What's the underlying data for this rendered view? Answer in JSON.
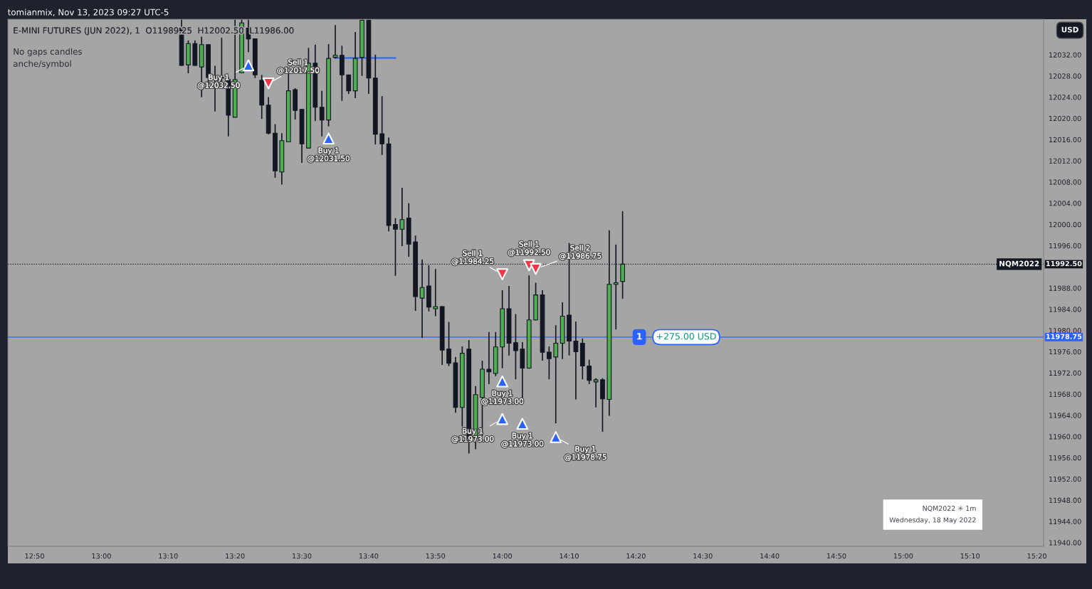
{
  "chart_data": {
    "type": "candlestick",
    "title": "E-MINI FUTURES (JUN 2022), 1  O11989.25  H12002.50  L11986.00",
    "ylabel": "USD",
    "x": [
      "2022-05-18T13:12",
      "2022-05-18T13:13",
      "2022-05-18T13:14",
      "2022-05-18T13:15",
      "2022-05-18T13:16",
      "2022-05-18T13:17",
      "2022-05-18T13:18",
      "2022-05-18T13:19",
      "2022-05-18T13:20",
      "2022-05-18T13:21",
      "2022-05-18T13:22",
      "2022-05-18T13:23",
      "2022-05-18T13:24",
      "2022-05-18T13:25",
      "2022-05-18T13:26",
      "2022-05-18T13:27",
      "2022-05-18T13:28",
      "2022-05-18T13:29",
      "2022-05-18T13:30",
      "2022-05-18T13:31",
      "2022-05-18T13:32",
      "2022-05-18T13:33",
      "2022-05-18T13:34",
      "2022-05-18T13:35",
      "2022-05-18T13:36",
      "2022-05-18T13:37",
      "2022-05-18T13:38",
      "2022-05-18T13:39",
      "2022-05-18T13:40",
      "2022-05-18T13:41",
      "2022-05-18T13:42",
      "2022-05-18T13:43",
      "2022-05-18T13:44",
      "2022-05-18T13:45",
      "2022-05-18T13:46",
      "2022-05-18T13:47",
      "2022-05-18T13:48",
      "2022-05-18T13:49",
      "2022-05-18T13:50",
      "2022-05-18T13:51",
      "2022-05-18T13:52",
      "2022-05-18T13:53",
      "2022-05-18T13:54",
      "2022-05-18T13:55",
      "2022-05-18T13:56",
      "2022-05-18T13:57",
      "2022-05-18T13:58",
      "2022-05-18T13:59",
      "2022-05-18T14:00",
      "2022-05-18T14:01",
      "2022-05-18T14:02",
      "2022-05-18T14:03",
      "2022-05-18T14:04",
      "2022-05-18T14:05",
      "2022-05-18T14:06",
      "2022-05-18T14:07",
      "2022-05-18T14:08",
      "2022-05-18T14:09",
      "2022-05-18T14:10",
      "2022-05-18T14:11",
      "2022-05-18T14:12",
      "2022-05-18T14:13",
      "2022-05-18T14:14",
      "2022-05-18T14:15",
      "2022-05-18T14:16",
      "2022-05-18T14:17",
      "2022-05-18T14:18"
    ],
    "ohlc": [
      [
        12037.0,
        12038.6,
        12029.9,
        12030.0
      ],
      [
        12030.1,
        12034.7,
        12028.5,
        12034.1
      ],
      [
        12034.1,
        12034.7,
        12029.9,
        12030.0
      ],
      [
        12029.7,
        12035.4,
        12024.0,
        12033.9
      ],
      [
        12033.9,
        12034.0,
        12026.4,
        12027.7
      ],
      [
        12027.8,
        12029.9,
        12021.3,
        12027.8
      ],
      [
        12027.6,
        12035.2,
        12026.0,
        12027.6
      ],
      [
        12027.3,
        12027.8,
        12016.6,
        12020.6
      ],
      [
        12020.2,
        12038.6,
        12020.2,
        12027.3
      ],
      [
        12028.6,
        12038.6,
        12028.5,
        12038.0
      ],
      [
        12037.0,
        12038.6,
        12032.5,
        12035.0
      ],
      [
        12035.0,
        12035.0,
        12027.6,
        12028.2
      ],
      [
        12027.2,
        12028.2,
        12019.9,
        12022.5
      ],
      [
        12022.5,
        12024.0,
        12017.0,
        12017.2
      ],
      [
        12017.2,
        12018.9,
        12008.8,
        12010.1
      ],
      [
        12009.9,
        12017.2,
        12007.5,
        12015.8
      ],
      [
        12015.6,
        12028.5,
        12015.6,
        12025.2
      ],
      [
        12025.4,
        12025.7,
        12019.8,
        12021.5
      ],
      [
        12021.7,
        12021.7,
        12011.6,
        12015.2
      ],
      [
        12014.4,
        12033.3,
        12014.4,
        12030.4
      ],
      [
        12030.4,
        12033.9,
        12019.5,
        12022.1
      ],
      [
        12022.1,
        12025.2,
        12016.6,
        12019.7
      ],
      [
        12019.7,
        12034.0,
        12018.5,
        12031.3
      ],
      [
        12031.5,
        12037.6,
        12031.3,
        12031.9
      ],
      [
        12031.9,
        12033.7,
        12023.3,
        12028.2
      ],
      [
        12028.2,
        12028.2,
        12024.6,
        12025.2
      ],
      [
        12025.2,
        12036.3,
        12023.8,
        12031.3
      ],
      [
        12031.5,
        12038.6,
        12028.0,
        12038.5
      ],
      [
        12038.5,
        12038.6,
        12024.6,
        12027.6
      ],
      [
        12027.6,
        12032.0,
        12015.1,
        12017.0
      ],
      [
        12017.1,
        12024.2,
        12013.1,
        12015.2
      ],
      [
        12015.2,
        12016.4,
        11998.7,
        11999.8
      ],
      [
        12000.0,
        12001.2,
        11990.3,
        11999.1
      ],
      [
        11999.1,
        12006.9,
        11995.9,
        12000.9
      ],
      [
        12001.2,
        12004.0,
        11993.9,
        11996.3
      ],
      [
        11996.7,
        11997.9,
        11983.7,
        11986.4
      ],
      [
        11986.1,
        11993.4,
        11978.6,
        11988.1
      ],
      [
        11988.4,
        11992.3,
        11983.6,
        11984.4
      ],
      [
        11984.1,
        11991.6,
        11982.7,
        11984.5
      ],
      [
        11984.5,
        11984.6,
        11973.5,
        11976.3
      ],
      [
        11976.5,
        11981.6,
        11973.3,
        11973.8
      ],
      [
        11973.9,
        11975.0,
        11964.5,
        11965.5
      ],
      [
        11965.5,
        11977.0,
        11961.9,
        11975.7
      ],
      [
        11976.5,
        11978.2,
        11956.8,
        11959.6
      ],
      [
        11959.7,
        11969.5,
        11957.6,
        11967.9
      ],
      [
        11967.4,
        11974.3,
        11960.1,
        11972.7
      ],
      [
        11972.7,
        11979.7,
        11969.9,
        11972.2
      ],
      [
        11971.9,
        11979.7,
        11971.4,
        11976.9
      ],
      [
        11976.9,
        11987.6,
        11972.9,
        11984.1
      ],
      [
        11984.1,
        11988.4,
        11975.3,
        11977.6
      ],
      [
        11977.7,
        11983.1,
        11970.8,
        11976.2
      ],
      [
        11976.5,
        11977.8,
        11966.2,
        11972.9
      ],
      [
        11972.9,
        11990.4,
        11972.8,
        11982.0
      ],
      [
        11982.0,
        11989.0,
        11981.9,
        11986.7
      ],
      [
        11986.7,
        11987.6,
        11974.3,
        11975.9
      ],
      [
        11975.9,
        11977.0,
        11970.8,
        11974.7
      ],
      [
        11975.0,
        11981.0,
        11962.5,
        11977.6
      ],
      [
        11977.6,
        11985.3,
        11974.6,
        11982.7
      ],
      [
        11982.9,
        11996.5,
        11975.3,
        11978.0
      ],
      [
        11978.0,
        11981.7,
        11967.0,
        11976.0
      ],
      [
        11977.6,
        11978.5,
        11970.8,
        11973.3
      ],
      [
        11973.3,
        11974.5,
        11969.9,
        11970.6
      ],
      [
        11970.3,
        11971.0,
        11965.5,
        11970.7
      ],
      [
        11970.7,
        11971.0,
        11960.9,
        11967.1
      ],
      [
        11967.0,
        11998.9,
        11963.9,
        11988.7
      ],
      [
        11988.7,
        11996.2,
        11980.2,
        11989.0
      ],
      [
        11989.25,
        12002.5,
        11986.0,
        11992.5
      ]
    ],
    "series": [
      {
        "type": "scatter",
        "color": "#2962ff",
        "marker": "triangle",
        "x": [
          "2022-05-18T13:22",
          "2022-05-18T13:34",
          "2022-05-18T14:00",
          "2022-05-18T14:00",
          "2022-05-18T14:03",
          "2022-05-18T14:08"
        ],
        "values": [
          12030.0,
          12016.2,
          11970.4,
          11963.3,
          11962.4,
          11959.9
        ]
      },
      {
        "type": "scatter",
        "color": "#f23645",
        "marker": "triangle_down",
        "x": [
          "2022-05-18T13:25",
          "2022-05-18T14:00",
          "2022-05-18T14:04",
          "2022-05-18T14:05"
        ],
        "values": [
          12026.6,
          11990.6,
          11992.3,
          11991.6
        ]
      },
      {
        "type": "line",
        "color": "#2962ff",
        "x": [
          "2022-05-18T13:35",
          "2022-05-18T13:44"
        ],
        "values": [
          12031.4,
          12031.4
        ]
      }
    ],
    "ref_lines": [
      {
        "axis": "y",
        "value": 11992.5,
        "label": "NQM2022",
        "color": "#131722",
        "line_style": "dotted"
      },
      {
        "axis": "y",
        "value": 11978.75,
        "label": "+275.00 USD",
        "color": "#2962ff",
        "line_style": "solid"
      }
    ],
    "annotations": [
      "tomianmix, Nov 13, 2023 09:27 UTC-5",
      "No gaps candles",
      "anche/symbol",
      "NQM2022 ✳ 1m\nWednesday, 18 May 2022",
      "1",
      "11992.50",
      "11978.75",
      {
        "text": "Sell 1\n@12017.50",
        "x": "2022-05-18T13:25",
        "y": 12026.6
      },
      {
        "text": "Buy 1\n@12032.50",
        "x": "2022-05-18T13:22",
        "y": 12030.0
      },
      {
        "text": "Buy 1\n@12031.50",
        "x": "2022-05-18T13:34",
        "y": 12016.2
      },
      {
        "text": "Sell 1\n@11984.25",
        "x": "2022-05-18T14:00",
        "y": 11990.6
      },
      {
        "text": "Sell 1\n@11992.50",
        "x": "2022-05-18T14:04",
        "y": 11992.3
      },
      {
        "text": "Sell 2\n@11986.75",
        "x": "2022-05-18T14:05",
        "y": 11991.6
      },
      {
        "text": "Buy 1\n@11973.00",
        "x": "2022-05-18T14:00",
        "y": 11970.4
      },
      {
        "text": "Buy 1\n@11973.00",
        "x": "2022-05-18T14:00",
        "y": 11963.3
      },
      {
        "text": "Buy 1\n@11973.00",
        "x": "2022-05-18T14:03",
        "y": 11962.4
      },
      {
        "text": "Buy 1\n@11978.75",
        "x": "2022-05-18T14:08",
        "y": 11959.9
      }
    ],
    "xlim": [
      "2022-05-18T12:46",
      "2022-05-18T15:21"
    ],
    "xticks": [
      {
        "value": "2022-05-18T12:50",
        "label": "12:50"
      },
      {
        "value": "2022-05-18T13:00",
        "label": "13:00"
      },
      {
        "value": "2022-05-18T13:10",
        "label": "13:10"
      },
      {
        "value": "2022-05-18T13:20",
        "label": "13:20"
      },
      {
        "value": "2022-05-18T13:30",
        "label": "13:30"
      },
      {
        "value": "2022-05-18T13:40",
        "label": "13:40"
      },
      {
        "value": "2022-05-18T13:50",
        "label": "13:50"
      },
      {
        "value": "2022-05-18T14:00",
        "label": "14:00"
      },
      {
        "value": "2022-05-18T14:10",
        "label": "14:10"
      },
      {
        "value": "2022-05-18T14:20",
        "label": "14:20"
      },
      {
        "value": "2022-05-18T14:30",
        "label": "14:30"
      },
      {
        "value": "2022-05-18T14:40",
        "label": "14:40"
      },
      {
        "value": "2022-05-18T14:50",
        "label": "14:50"
      },
      {
        "value": "2022-05-18T15:00",
        "label": "15:00"
      },
      {
        "value": "2022-05-18T15:10",
        "label": "15:10"
      },
      {
        "value": "2022-05-18T15:20",
        "label": "15:20"
      }
    ],
    "ylim": [
      11939.3,
      12038.7
    ],
    "yticks": [
      {
        "value": 11940,
        "label": "11940.00"
      },
      {
        "value": 11944,
        "label": "11944.00"
      },
      {
        "value": 11948,
        "label": "11948.00"
      },
      {
        "value": 11952,
        "label": "11952.00"
      },
      {
        "value": 11956,
        "label": "11956.00"
      },
      {
        "value": 11960,
        "label": "11960.00"
      },
      {
        "value": 11964,
        "label": "11964.00"
      },
      {
        "value": 11968,
        "label": "11968.00"
      },
      {
        "value": 11972,
        "label": "11972.00"
      },
      {
        "value": 11976,
        "label": "11976.00"
      },
      {
        "value": 11980,
        "label": "11980.00"
      },
      {
        "value": 11984,
        "label": "11984.00"
      },
      {
        "value": 11988,
        "label": "11988.00"
      },
      {
        "value": 11996,
        "label": "11996.00"
      },
      {
        "value": 12000,
        "label": "12000.00"
      },
      {
        "value": 12004,
        "label": "12004.00"
      },
      {
        "value": 12008,
        "label": "12008.00"
      },
      {
        "value": 12012,
        "label": "12012.00"
      },
      {
        "value": 12016,
        "label": "12016.00"
      },
      {
        "value": 12020,
        "label": "12020.00"
      },
      {
        "value": 12024,
        "label": "12024.00"
      },
      {
        "value": 12028,
        "label": "12028.00"
      },
      {
        "value": 12032,
        "label": "12032.00"
      }
    ],
    "grid": false,
    "legend": false
  }
}
